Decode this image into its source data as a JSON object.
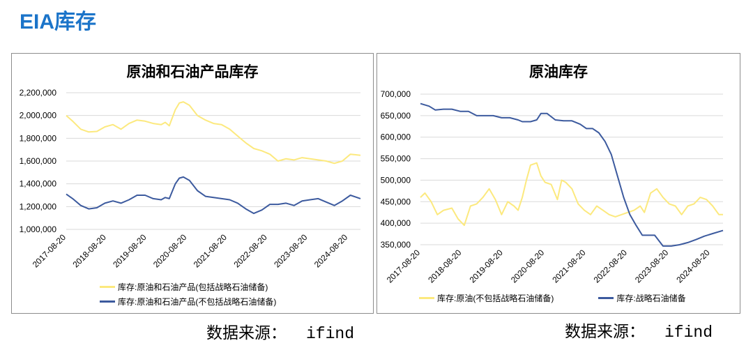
{
  "page_title": "EIA库存",
  "source_label": "数据来源：",
  "source_value": "ifind",
  "colors": {
    "yellow": "#fce97e",
    "blue": "#3c5a9e",
    "title": "#1b74c9",
    "grid": "#d9d9d9"
  },
  "chart_data": [
    {
      "type": "line",
      "title": "原油和石油产品库存",
      "xlabel": "",
      "ylabel": "",
      "ylim": [
        1000000,
        2200000
      ],
      "yticks": [
        "2,200,000",
        "2,000,000",
        "1,800,000",
        "1,600,000",
        "1,400,000",
        "1,200,000",
        "1,000,000"
      ],
      "ytick_values": [
        2200000,
        2000000,
        1800000,
        1600000,
        1400000,
        1200000,
        1000000
      ],
      "x_ticks": [
        "2017-08-20",
        "2018-08-20",
        "2019-08-20",
        "2020-08-20",
        "2021-08-20",
        "2022-08-20",
        "2023-08-20",
        "2024-08-20"
      ],
      "x_tick_years": [
        2017.64,
        2018.64,
        2019.64,
        2020.64,
        2021.64,
        2022.64,
        2023.64,
        2024.64
      ],
      "xlim": [
        2017.64,
        2024.95
      ],
      "grid": true,
      "legend_placement": "bottom",
      "series": [
        {
          "name": "库存:原油和石油产品(包括战略石油储备)",
          "color": "#fce97e",
          "x": [
            2017.64,
            2017.8,
            2018.0,
            2018.2,
            2018.4,
            2018.6,
            2018.8,
            2019.0,
            2019.2,
            2019.4,
            2019.6,
            2019.8,
            2020.0,
            2020.1,
            2020.2,
            2020.35,
            2020.45,
            2020.55,
            2020.7,
            2020.9,
            2021.1,
            2021.3,
            2021.5,
            2021.7,
            2021.9,
            2022.1,
            2022.3,
            2022.5,
            2022.7,
            2022.9,
            2023.1,
            2023.3,
            2023.5,
            2023.7,
            2023.9,
            2024.1,
            2024.3,
            2024.5,
            2024.7,
            2024.95
          ],
          "y": [
            2000000,
            1950000,
            1880000,
            1855000,
            1860000,
            1900000,
            1920000,
            1880000,
            1930000,
            1960000,
            1950000,
            1930000,
            1920000,
            1940000,
            1910000,
            2050000,
            2110000,
            2120000,
            2090000,
            2000000,
            1960000,
            1930000,
            1920000,
            1880000,
            1820000,
            1760000,
            1710000,
            1690000,
            1660000,
            1600000,
            1620000,
            1610000,
            1630000,
            1620000,
            1610000,
            1600000,
            1580000,
            1600000,
            1660000,
            1650000
          ]
        },
        {
          "name": "库存:原油和石油产品(不包括战略石油储备)",
          "color": "#3c5a9e",
          "x": [
            2017.64,
            2017.8,
            2018.0,
            2018.2,
            2018.4,
            2018.6,
            2018.8,
            2019.0,
            2019.2,
            2019.4,
            2019.6,
            2019.8,
            2020.0,
            2020.1,
            2020.2,
            2020.35,
            2020.45,
            2020.55,
            2020.7,
            2020.9,
            2021.1,
            2021.3,
            2021.5,
            2021.7,
            2021.9,
            2022.1,
            2022.3,
            2022.5,
            2022.7,
            2022.9,
            2023.1,
            2023.3,
            2023.5,
            2023.7,
            2023.9,
            2024.1,
            2024.3,
            2024.5,
            2024.7,
            2024.95
          ],
          "y": [
            1310000,
            1270000,
            1210000,
            1180000,
            1190000,
            1230000,
            1250000,
            1230000,
            1260000,
            1300000,
            1300000,
            1270000,
            1260000,
            1280000,
            1270000,
            1400000,
            1450000,
            1460000,
            1430000,
            1340000,
            1290000,
            1280000,
            1270000,
            1260000,
            1230000,
            1180000,
            1140000,
            1170000,
            1220000,
            1220000,
            1230000,
            1210000,
            1250000,
            1260000,
            1270000,
            1240000,
            1210000,
            1250000,
            1300000,
            1270000
          ]
        }
      ]
    },
    {
      "type": "line",
      "title": "原油库存",
      "xlabel": "",
      "ylabel": "",
      "ylim": [
        350000,
        700000
      ],
      "yticks": [
        "700,000",
        "650,000",
        "600,000",
        "550,000",
        "500,000",
        "450,000",
        "400,000",
        "350,000"
      ],
      "ytick_values": [
        700000,
        650000,
        600000,
        550000,
        500000,
        450000,
        400000,
        350000
      ],
      "x_ticks": [
        "2017-08-20",
        "2018-08-20",
        "2019-08-20",
        "2020-08-20",
        "2021-08-20",
        "2022-08-20",
        "2023-08-20",
        "2024-08-20"
      ],
      "x_tick_years": [
        2017.64,
        2018.64,
        2019.64,
        2020.64,
        2021.64,
        2022.64,
        2023.64,
        2024.64
      ],
      "xlim": [
        2017.64,
        2024.95
      ],
      "grid": true,
      "legend_placement": "bottom",
      "series": [
        {
          "name": "库存:原油(不包括战略石油储备)",
          "color": "#fce97e",
          "x": [
            2017.64,
            2017.75,
            2017.9,
            2018.05,
            2018.2,
            2018.4,
            2018.55,
            2018.7,
            2018.85,
            2019.0,
            2019.15,
            2019.3,
            2019.45,
            2019.6,
            2019.75,
            2019.9,
            2020.0,
            2020.1,
            2020.2,
            2020.3,
            2020.45,
            2020.55,
            2020.65,
            2020.8,
            2020.95,
            2021.05,
            2021.15,
            2021.3,
            2021.45,
            2021.6,
            2021.75,
            2021.9,
            2022.05,
            2022.2,
            2022.35,
            2022.5,
            2022.65,
            2022.8,
            2022.95,
            2023.05,
            2023.2,
            2023.35,
            2023.5,
            2023.65,
            2023.8,
            2023.95,
            2024.1,
            2024.25,
            2024.4,
            2024.55,
            2024.7,
            2024.85,
            2024.95
          ],
          "y": [
            460000,
            470000,
            450000,
            420000,
            430000,
            435000,
            410000,
            395000,
            440000,
            445000,
            460000,
            480000,
            455000,
            420000,
            450000,
            440000,
            430000,
            460000,
            500000,
            535000,
            540000,
            510000,
            495000,
            490000,
            455000,
            500000,
            495000,
            480000,
            445000,
            430000,
            420000,
            440000,
            430000,
            420000,
            415000,
            420000,
            425000,
            430000,
            440000,
            425000,
            470000,
            480000,
            460000,
            445000,
            440000,
            420000,
            440000,
            445000,
            460000,
            455000,
            440000,
            420000,
            420000
          ]
        },
        {
          "name": "库存:战略石油储备",
          "color": "#3c5a9e",
          "x": [
            2017.64,
            2017.85,
            2018.0,
            2018.2,
            2018.4,
            2018.6,
            2018.8,
            2019.0,
            2019.2,
            2019.4,
            2019.6,
            2019.8,
            2020.0,
            2020.1,
            2020.2,
            2020.3,
            2020.45,
            2020.55,
            2020.7,
            2020.9,
            2021.1,
            2021.3,
            2021.5,
            2021.65,
            2021.8,
            2021.95,
            2022.1,
            2022.25,
            2022.4,
            2022.55,
            2022.7,
            2022.85,
            2023.0,
            2023.15,
            2023.3,
            2023.5,
            2023.7,
            2023.9,
            2024.1,
            2024.3,
            2024.5,
            2024.7,
            2024.95
          ],
          "y": [
            678000,
            672000,
            663000,
            665000,
            665000,
            660000,
            660000,
            650000,
            650000,
            650000,
            645000,
            645000,
            640000,
            636000,
            636000,
            636000,
            640000,
            655000,
            655000,
            640000,
            638000,
            638000,
            630000,
            620000,
            620000,
            610000,
            590000,
            560000,
            510000,
            460000,
            420000,
            395000,
            372000,
            372000,
            372000,
            347000,
            347000,
            350000,
            355000,
            362000,
            370000,
            376000,
            383000
          ]
        }
      ]
    }
  ]
}
